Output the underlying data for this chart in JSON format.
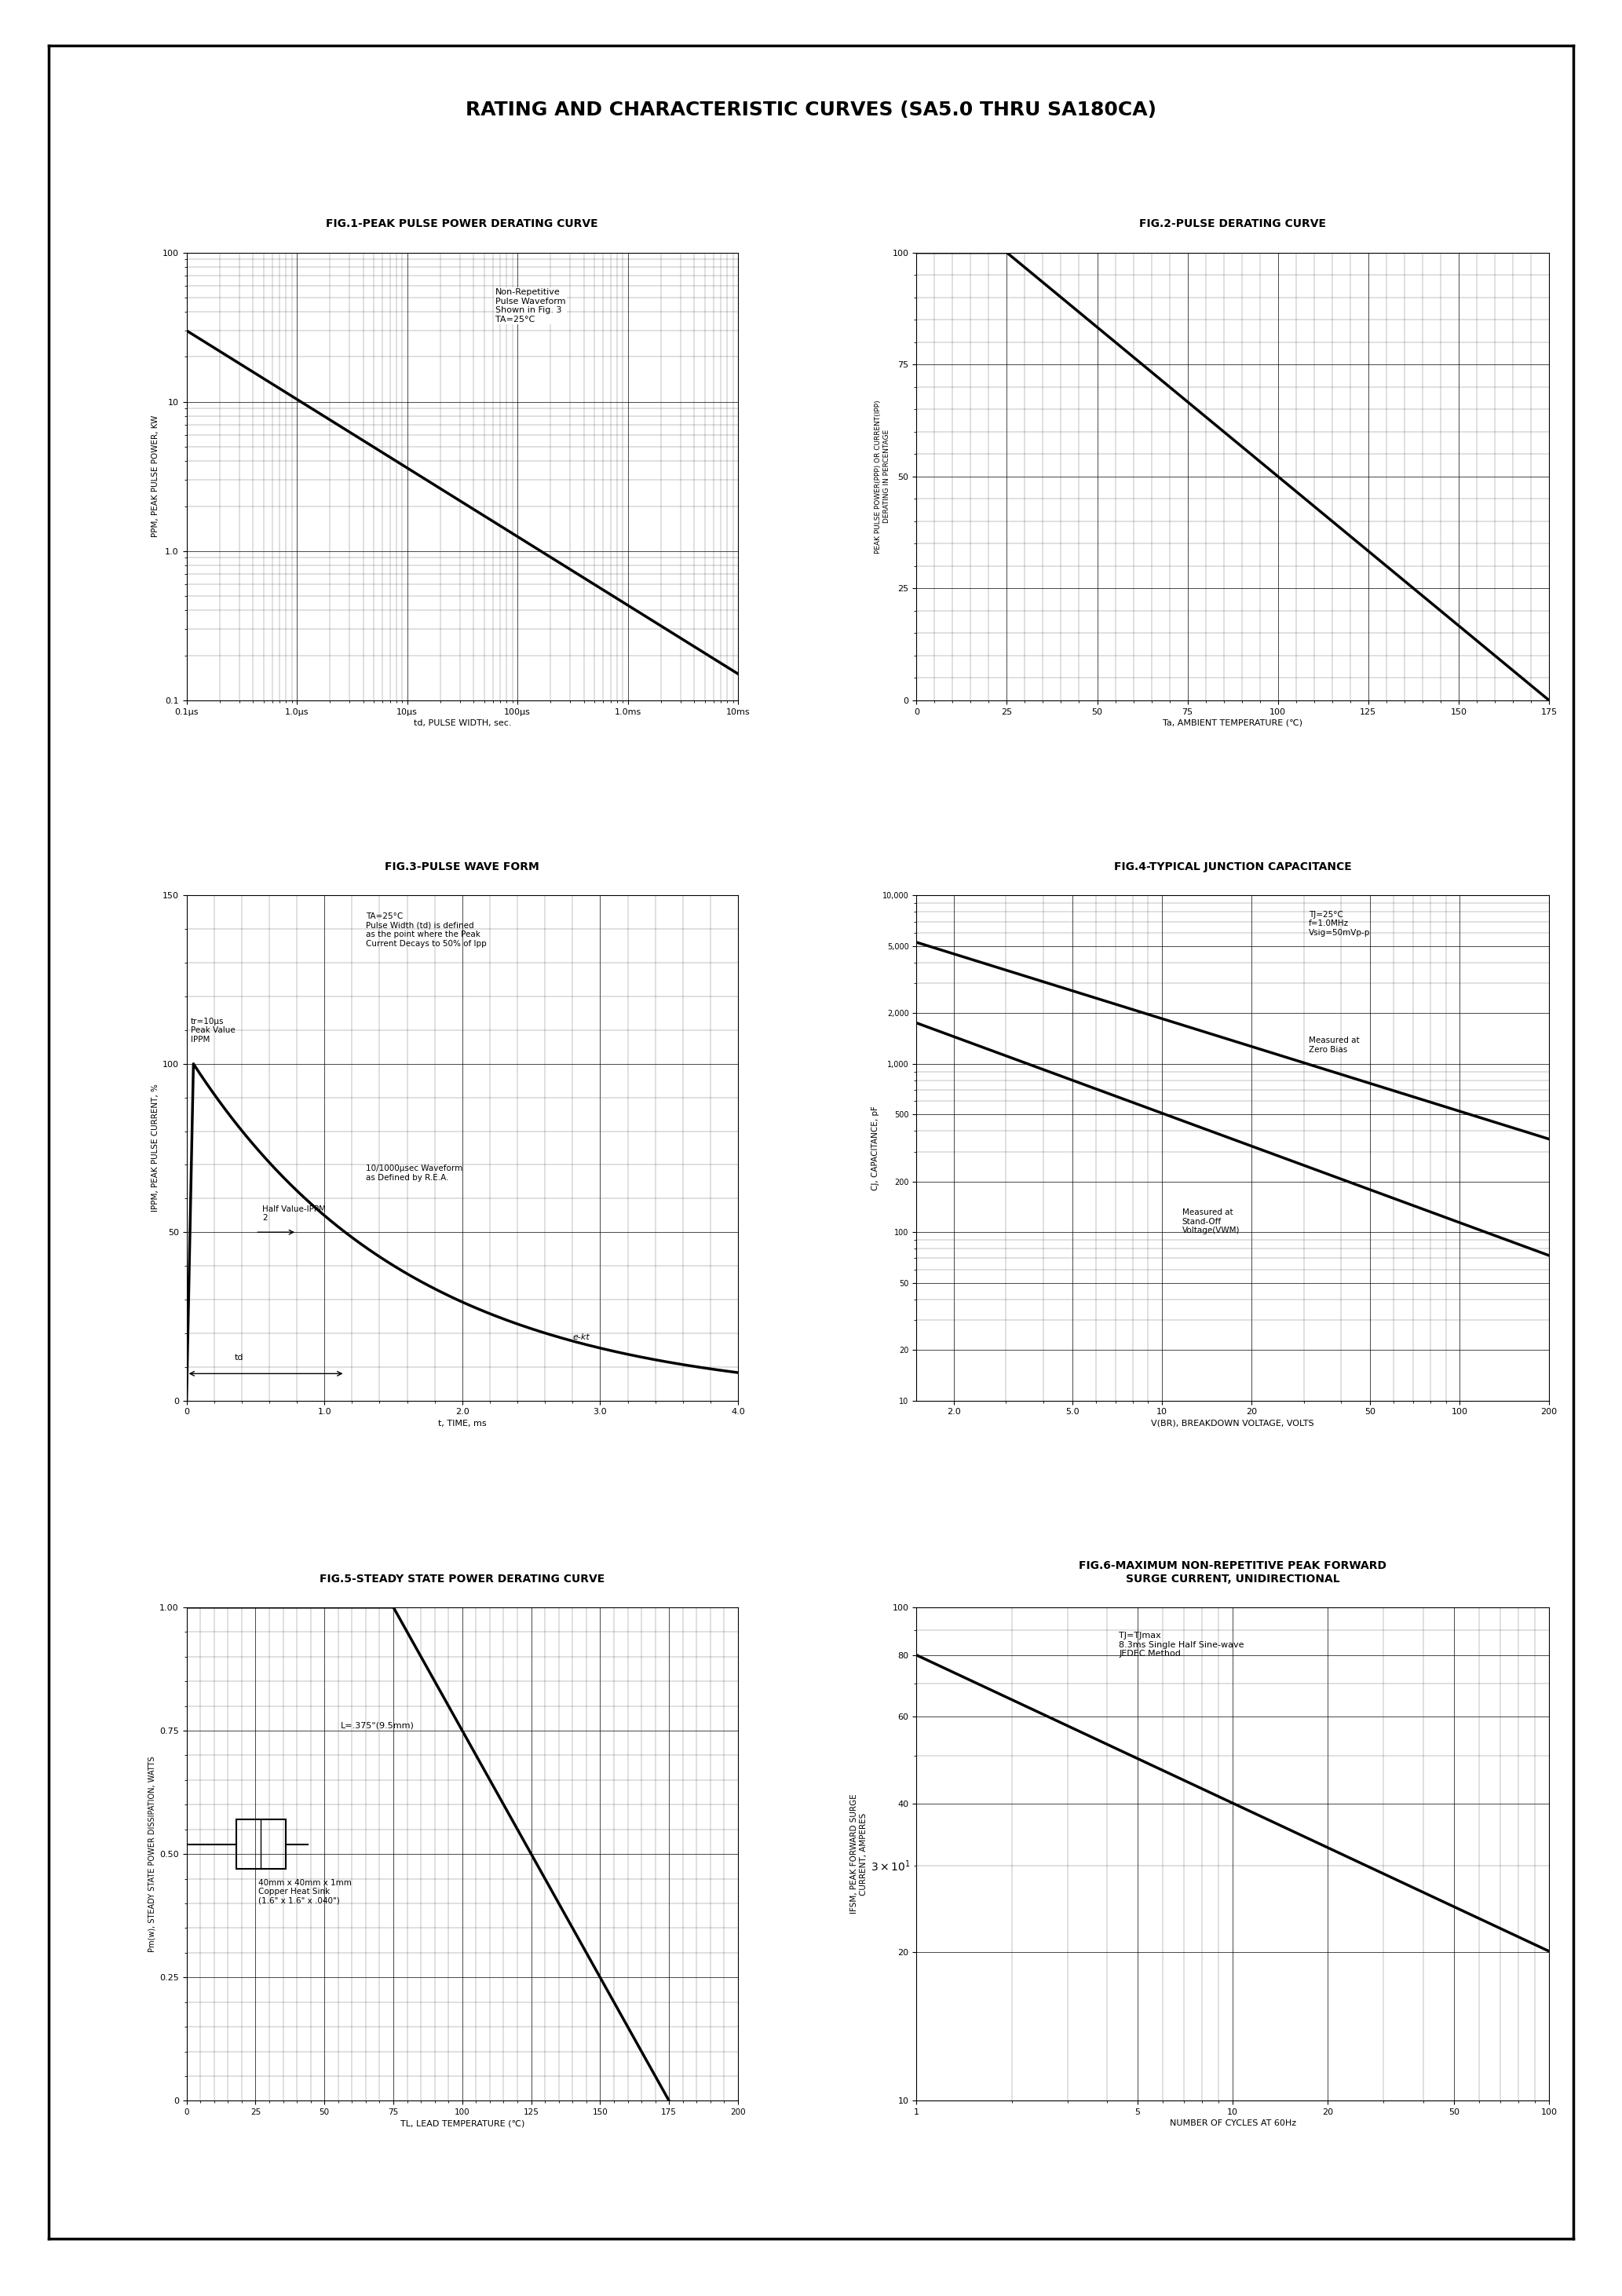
{
  "title": "RATING AND CHARACTERISTIC CURVES (SA5.0 THRU SA180CA)",
  "fig1_title": "FIG.1-PEAK PULSE POWER DERATING CURVE",
  "fig2_title": "FIG.2-PULSE DERATING CURVE",
  "fig3_title": "FIG.3-PULSE WAVE FORM",
  "fig4_title": "FIG.4-TYPICAL JUNCTION CAPACITANCE",
  "fig5_title": "FIG.5-STEADY STATE POWER DERATING CURVE",
  "fig6_title": "FIG.6-MAXIMUM NON-REPETITIVE PEAK FORWARD\nSURGE CURRENT, UNIDIRECTIONAL",
  "fig1_note": "Non-Repetitive\nPulse Waveform\nShown in Fig. 3\nTA=25°C",
  "fig1_xlabel": "td, PULSE WIDTH, sec.",
  "fig1_ylabel": "PPM, PEAK PULSE POWER, KW",
  "fig2_xlabel": "Ta, AMBIENT TEMPERATURE (℃)",
  "fig2_ylabel": "PEAK PULSE POWER(PPP) OR CURRENT(IPP)\nDERATING IN PERCENTAGE",
  "fig3_xlabel": "t, TIME, ms",
  "fig3_ylabel": "IPPM, PEAK PULSE CURRENT, %",
  "fig3_note1": "tr=10μs\nPeak Value\nIPPM",
  "fig3_note2": "TA=25°C\nPulse Width (td) is defined\nas the point where the Peak\nCurrent Decays to 50% of Ipp",
  "fig3_note3": "Half Value-IPPM\n2",
  "fig3_note4": "10/1000μsec Waveform\nas Defined by R.E.A.",
  "fig3_td": "td",
  "fig3_ekt": "e-kt",
  "fig4_xlabel": "V(BR), BREAKDOWN VOLTAGE, VOLTS",
  "fig4_ylabel": "CJ, CAPACITANCE, pF",
  "fig4_note1": "TJ=25°C\nf=1.0MHz\nVsig=50mVp-p",
  "fig4_note2": "Measured at\nZero Bias",
  "fig4_note3": "Measured at\nStand-Off\nVoltage(VWM)",
  "fig5_xlabel": "TL, LEAD TEMPERATURE (℃)",
  "fig5_ylabel": "Pm(w), STEADY STATE POWER DISSIPATION, WATTS",
  "fig5_note1": "L=.375\"(9.5mm)",
  "fig5_note2": "40mm x 40mm x 1mm\nCopper Heat Sink\n(1.6\" x 1.6\" x .040\")",
  "fig6_xlabel": "NUMBER OF CYCLES AT 60Hz",
  "fig6_ylabel": "IFSM, PEAK FORWARD SURGE\nCURRENT, AMPERES",
  "fig6_note": "TJ=TJmax\n8.3ms Single Half Sine-wave\nJEDEC Method",
  "bg_color": "#ffffff",
  "grid_color": "#000000",
  "line_color": "#000000",
  "border_color": "#000000"
}
